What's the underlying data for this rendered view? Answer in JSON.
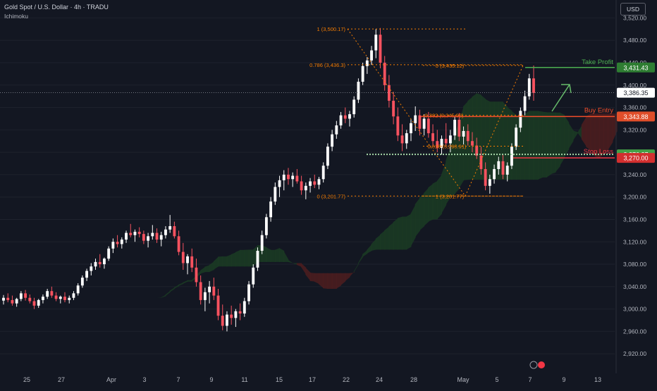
{
  "header": {
    "title": "Gold Spot / U.S. Dollar · 4h · TRADU",
    "indicator": "Ichimoku",
    "currency": "USD"
  },
  "colors": {
    "background": "#131722",
    "up": "#ffffff",
    "down": "#f7525f",
    "grid": "#1e222d",
    "fib": "#f57c00",
    "tp": "#4caf50",
    "sl": "#f23645",
    "entry": "#f24d2a",
    "cloud_bull": "#1b3a24",
    "cloud_bear": "#4a1d1f"
  },
  "chart_data": {
    "type": "candlestick",
    "title": "Gold Spot / U.S. Dollar · 4h · TRADU",
    "timeframe": "4h",
    "ylim": [
      2885,
      3552
    ],
    "y_ticks": [
      2920,
      2960,
      3000,
      3040,
      3080,
      3120,
      3160,
      3200,
      3240,
      3280,
      3320,
      3360,
      3400,
      3440,
      3480,
      3520
    ],
    "y_tick_labels": [
      "2,920.00",
      "2,960.00",
      "3,000.00",
      "3,040.00",
      "3,080.00",
      "3,120.00",
      "3,160.00",
      "3,200.00",
      "3,240.00",
      "3,280.00",
      "3,320.00",
      "3,360.00",
      "3,400.00",
      "3,440.00",
      "3,480.00",
      "3,520.00"
    ],
    "x_labels": [
      "25",
      "27",
      "Apr",
      "3",
      "7",
      "9",
      "11",
      "15",
      "17",
      "22",
      "24",
      "28",
      "May",
      "5",
      "7",
      "9",
      "13"
    ],
    "last_price": 3386.35,
    "last_price_label": "3,386.35",
    "levels": {
      "take_profit": {
        "label": "Take Profit",
        "value": 3431.43,
        "value_label": "3,431.43"
      },
      "buy_entry": {
        "label": "Buy Entry",
        "value": 3343.88,
        "value_label": "3,343.88"
      },
      "stop_loss": {
        "label": "Stop Loss",
        "value": 3270.0,
        "value_label": "3,270.00"
      },
      "support": {
        "value": 3276.27,
        "value_label": "3,276.27"
      }
    },
    "fib_left": [
      {
        "label": "1 (3,500.17)",
        "value": 3500.17
      },
      {
        "label": "0.786 (3,436.3)",
        "value": 3436.3
      },
      {
        "label": "0 (3,201.77)",
        "value": 3201.77
      }
    ],
    "fib_right": [
      {
        "label": "0 (3,435.12)",
        "value": 3435.12
      },
      {
        "label": "0.382 (3,345.98)",
        "value": 3345.98
      },
      {
        "label": "0.618 (3,290.91)",
        "value": 3290.91
      },
      {
        "label": "1 (3,201.77)",
        "value": 3201.77
      }
    ],
    "candles": [
      [
        3015,
        3025,
        3008,
        3020
      ],
      [
        3020,
        3028,
        3012,
        3016
      ],
      [
        3016,
        3024,
        3006,
        3010
      ],
      [
        3010,
        3020,
        3004,
        3018
      ],
      [
        3018,
        3032,
        3014,
        3028
      ],
      [
        3028,
        3034,
        3015,
        3020
      ],
      [
        3020,
        3026,
        3010,
        3014
      ],
      [
        3014,
        3020,
        3000,
        3006
      ],
      [
        3006,
        3018,
        3002,
        3016
      ],
      [
        3016,
        3026,
        3010,
        3022
      ],
      [
        3022,
        3036,
        3018,
        3032
      ],
      [
        3032,
        3040,
        3020,
        3024
      ],
      [
        3024,
        3030,
        3014,
        3018
      ],
      [
        3018,
        3024,
        3010,
        3022
      ],
      [
        3022,
        3030,
        3012,
        3016
      ],
      [
        3016,
        3024,
        3010,
        3020
      ],
      [
        3020,
        3032,
        3016,
        3028
      ],
      [
        3028,
        3046,
        3024,
        3042
      ],
      [
        3042,
        3060,
        3038,
        3056
      ],
      [
        3056,
        3072,
        3050,
        3068
      ],
      [
        3068,
        3082,
        3060,
        3076
      ],
      [
        3076,
        3090,
        3070,
        3084
      ],
      [
        3084,
        3098,
        3074,
        3080
      ],
      [
        3080,
        3092,
        3072,
        3090
      ],
      [
        3090,
        3112,
        3086,
        3108
      ],
      [
        3108,
        3126,
        3100,
        3120
      ],
      [
        3120,
        3132,
        3110,
        3116
      ],
      [
        3116,
        3128,
        3108,
        3124
      ],
      [
        3124,
        3140,
        3118,
        3136
      ],
      [
        3136,
        3152,
        3128,
        3132
      ],
      [
        3132,
        3142,
        3120,
        3138
      ],
      [
        3138,
        3146,
        3128,
        3134
      ],
      [
        3134,
        3140,
        3116,
        3122
      ],
      [
        3122,
        3136,
        3110,
        3130
      ],
      [
        3130,
        3150,
        3124,
        3136
      ],
      [
        3136,
        3144,
        3118,
        3124
      ],
      [
        3124,
        3138,
        3112,
        3132
      ],
      [
        3132,
        3148,
        3126,
        3142
      ],
      [
        3142,
        3168,
        3136,
        3148
      ],
      [
        3148,
        3156,
        3126,
        3130
      ],
      [
        3130,
        3140,
        3096,
        3102
      ],
      [
        3102,
        3118,
        3070,
        3082
      ],
      [
        3082,
        3098,
        3062,
        3094
      ],
      [
        3094,
        3108,
        3066,
        3074
      ],
      [
        3074,
        3090,
        3040,
        3048
      ],
      [
        3048,
        3060,
        3008,
        3016
      ],
      [
        3016,
        3038,
        2996,
        3030
      ],
      [
        3030,
        3050,
        3010,
        3040
      ],
      [
        3040,
        3056,
        3016,
        3024
      ],
      [
        3024,
        3036,
        2980,
        2988
      ],
      [
        2988,
        3008,
        2962,
        2970
      ],
      [
        2970,
        2996,
        2960,
        2990
      ],
      [
        2990,
        3006,
        2972,
        2984
      ],
      [
        2984,
        3000,
        2968,
        2996
      ],
      [
        2996,
        3010,
        2980,
        2992
      ],
      [
        2992,
        3020,
        2986,
        3014
      ],
      [
        3014,
        3050,
        3008,
        3044
      ],
      [
        3044,
        3080,
        3038,
        3074
      ],
      [
        3074,
        3110,
        3068,
        3104
      ],
      [
        3104,
        3140,
        3098,
        3132
      ],
      [
        3132,
        3170,
        3126,
        3164
      ],
      [
        3164,
        3200,
        3156,
        3192
      ],
      [
        3192,
        3226,
        3186,
        3218
      ],
      [
        3218,
        3238,
        3200,
        3230
      ],
      [
        3230,
        3248,
        3212,
        3240
      ],
      [
        3240,
        3252,
        3222,
        3232
      ],
      [
        3232,
        3244,
        3218,
        3238
      ],
      [
        3238,
        3250,
        3224,
        3228
      ],
      [
        3228,
        3238,
        3204,
        3212
      ],
      [
        3212,
        3226,
        3196,
        3220
      ],
      [
        3220,
        3234,
        3208,
        3228
      ],
      [
        3228,
        3240,
        3216,
        3222
      ],
      [
        3222,
        3236,
        3214,
        3232
      ],
      [
        3232,
        3262,
        3226,
        3256
      ],
      [
        3256,
        3296,
        3250,
        3290
      ],
      [
        3290,
        3320,
        3282,
        3312
      ],
      [
        3312,
        3336,
        3304,
        3328
      ],
      [
        3328,
        3352,
        3322,
        3346
      ],
      [
        3346,
        3360,
        3332,
        3340
      ],
      [
        3340,
        3354,
        3326,
        3348
      ],
      [
        3348,
        3380,
        3342,
        3374
      ],
      [
        3374,
        3412,
        3368,
        3406
      ],
      [
        3406,
        3440,
        3400,
        3434
      ],
      [
        3434,
        3450,
        3420,
        3444
      ],
      [
        3444,
        3470,
        3436,
        3462
      ],
      [
        3462,
        3500,
        3448,
        3490
      ],
      [
        3490,
        3502,
        3430,
        3440
      ],
      [
        3440,
        3452,
        3390,
        3400
      ],
      [
        3400,
        3418,
        3360,
        3372
      ],
      [
        3372,
        3388,
        3330,
        3344
      ],
      [
        3344,
        3360,
        3300,
        3310
      ],
      [
        3310,
        3330,
        3282,
        3296
      ],
      [
        3296,
        3320,
        3286,
        3314
      ],
      [
        3314,
        3340,
        3300,
        3332
      ],
      [
        3332,
        3362,
        3318,
        3346
      ],
      [
        3346,
        3356,
        3310,
        3322
      ],
      [
        3322,
        3348,
        3310,
        3340
      ],
      [
        3340,
        3352,
        3306,
        3314
      ],
      [
        3314,
        3330,
        3290,
        3300
      ],
      [
        3300,
        3320,
        3280,
        3288
      ],
      [
        3288,
        3310,
        3276,
        3304
      ],
      [
        3304,
        3332,
        3290,
        3296
      ],
      [
        3296,
        3320,
        3280,
        3310
      ],
      [
        3310,
        3344,
        3302,
        3338
      ],
      [
        3338,
        3350,
        3300,
        3308
      ],
      [
        3308,
        3326,
        3294,
        3318
      ],
      [
        3318,
        3330,
        3292,
        3300
      ],
      [
        3300,
        3316,
        3280,
        3292
      ],
      [
        3292,
        3306,
        3268,
        3274
      ],
      [
        3274,
        3290,
        3240,
        3250
      ],
      [
        3250,
        3262,
        3212,
        3220
      ],
      [
        3220,
        3240,
        3206,
        3232
      ],
      [
        3232,
        3258,
        3224,
        3250
      ],
      [
        3250,
        3272,
        3240,
        3264
      ],
      [
        3264,
        3276,
        3232,
        3240
      ],
      [
        3240,
        3262,
        3228,
        3256
      ],
      [
        3256,
        3296,
        3250,
        3290
      ],
      [
        3290,
        3330,
        3284,
        3324
      ],
      [
        3324,
        3360,
        3316,
        3354
      ],
      [
        3354,
        3390,
        3346,
        3380
      ],
      [
        3380,
        3420,
        3374,
        3412
      ],
      [
        3412,
        3435,
        3372,
        3386
      ]
    ]
  }
}
